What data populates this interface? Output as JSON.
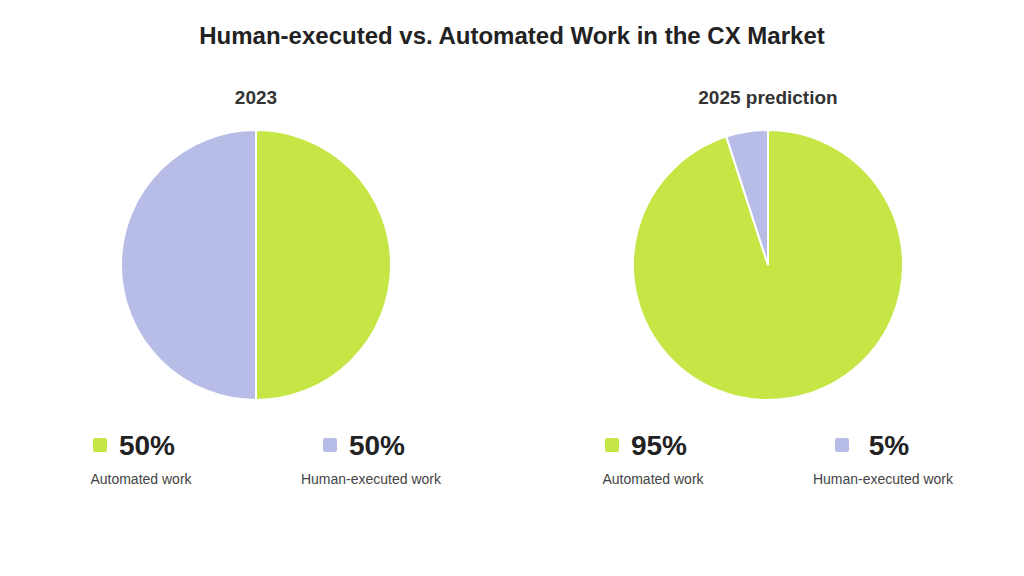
{
  "title": "Human-executed vs. Automated Work in the CX Market",
  "chart_data": [
    {
      "type": "pie",
      "title": "2023",
      "categories": [
        "Automated work",
        "Human-executed work"
      ],
      "values": [
        50,
        50
      ],
      "value_labels": [
        "50%",
        "50%"
      ],
      "colors": [
        "#c5e644",
        "#b8bde8"
      ],
      "data_labels": true
    },
    {
      "type": "pie",
      "title": "2025 prediction",
      "categories": [
        "Automated work",
        "Human-executed work"
      ],
      "values": [
        95,
        5
      ],
      "value_labels": [
        "95%",
        "5%"
      ],
      "colors": [
        "#c5e644",
        "#b8bde8"
      ],
      "data_labels": true
    }
  ]
}
